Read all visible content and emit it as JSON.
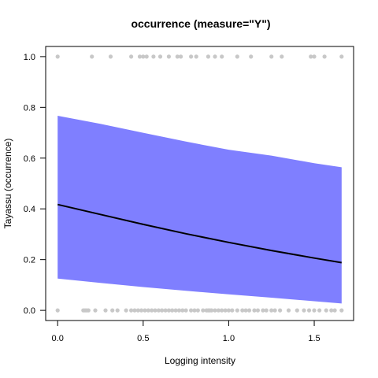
{
  "chart_data": {
    "type": "line",
    "title": "occurrence (measure=\"Y\")",
    "xlabel": "Logging intensity",
    "ylabel": "Tayassu (occurrence)",
    "xlim": [
      -0.07,
      1.73
    ],
    "ylim": [
      -0.04,
      1.04
    ],
    "x_ticks": [
      0.0,
      0.5,
      1.0,
      1.5
    ],
    "x_tick_labels": [
      "0.0",
      "0.5",
      "1.0",
      "1.5"
    ],
    "y_ticks": [
      0.0,
      0.2,
      0.4,
      0.6,
      0.8,
      1.0
    ],
    "y_tick_labels": [
      "0.0",
      "0.2",
      "0.4",
      "0.6",
      "0.8",
      "1.0"
    ],
    "grid": false,
    "legend": "none",
    "colors": {
      "band": "#7f7fff",
      "line": "#000000",
      "points": "#c8c8c8",
      "axis": "#000000"
    },
    "band": {
      "x": [
        0.0,
        0.25,
        0.5,
        0.75,
        1.0,
        1.25,
        1.5,
        1.66
      ],
      "upper": [
        0.767,
        0.735,
        0.7,
        0.665,
        0.633,
        0.61,
        0.58,
        0.564
      ],
      "lower": [
        0.125,
        0.108,
        0.092,
        0.077,
        0.063,
        0.05,
        0.036,
        0.027
      ]
    },
    "fit": {
      "x": [
        0.0,
        0.25,
        0.5,
        0.75,
        1.0,
        1.25,
        1.5,
        1.66
      ],
      "y": [
        0.417,
        0.378,
        0.339,
        0.302,
        0.268,
        0.236,
        0.206,
        0.188
      ]
    },
    "points_at_1": [
      0.0,
      0.2,
      0.31,
      0.43,
      0.48,
      0.5,
      0.52,
      0.56,
      0.6,
      0.65,
      0.7,
      0.72,
      0.78,
      0.81,
      0.88,
      0.92,
      0.96,
      1.05,
      1.13,
      1.25,
      1.31,
      1.48,
      1.5,
      1.56,
      1.66
    ],
    "points_at_0": [
      0.0,
      0.15,
      0.16,
      0.17,
      0.18,
      0.22,
      0.28,
      0.32,
      0.35,
      0.4,
      0.43,
      0.45,
      0.47,
      0.49,
      0.51,
      0.53,
      0.55,
      0.57,
      0.59,
      0.61,
      0.63,
      0.65,
      0.67,
      0.69,
      0.71,
      0.73,
      0.75,
      0.78,
      0.8,
      0.82,
      0.85,
      0.87,
      0.88,
      0.89,
      0.9,
      0.92,
      0.94,
      0.96,
      0.98,
      1.0,
      1.02,
      1.05,
      1.08,
      1.1,
      1.12,
      1.15,
      1.17,
      1.2,
      1.22,
      1.25,
      1.27,
      1.3,
      1.35,
      1.4,
      1.44,
      1.47,
      1.5,
      1.53,
      1.57,
      1.6,
      1.62,
      1.66
    ]
  }
}
